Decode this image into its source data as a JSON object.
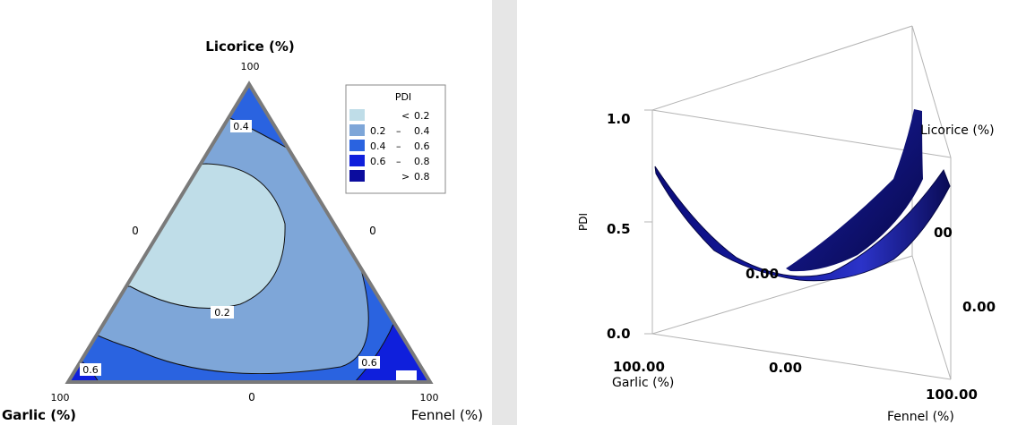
{
  "chart_data": [
    {
      "type": "ternary_contour",
      "response": "PDI",
      "axes": {
        "top": {
          "label": "Licorice (%)",
          "max_tick": "100"
        },
        "left": {
          "label": "Garlic (%)",
          "max_tick": "100"
        },
        "right": {
          "label": "Fennel (%)",
          "max_tick": "100"
        }
      },
      "side_ticks": {
        "left_edge": "0",
        "right_edge": "0",
        "bottom_edge": "0"
      },
      "legend": {
        "title": "PDI",
        "placement": "top-right",
        "entries": [
          {
            "op": "<",
            "low": "",
            "high": "0.2",
            "color": "#bfdde8"
          },
          {
            "op": "",
            "low": "0.2",
            "high": "0.4",
            "color": "#7ea6d8"
          },
          {
            "op": "",
            "low": "0.4",
            "high": "0.6",
            "color": "#2a63e0"
          },
          {
            "op": "",
            "low": "0.6",
            "high": "0.8",
            "color": "#0f1fdc"
          },
          {
            "op": ">",
            "low": "",
            "high": "0.8",
            "color": "#0b0c9e"
          }
        ]
      },
      "contour_labels": [
        "0.4",
        "0.2",
        "0.6",
        "0.6"
      ]
    },
    {
      "type": "surface3d",
      "response": "PDI",
      "zlabel": "PDI",
      "zticks": [
        "1.0",
        "0.5",
        "0.0"
      ],
      "axis_labels": {
        "garlic": "Garlic (%)",
        "fennel": "Fennel (%)",
        "licorice": "Licorice (%)"
      },
      "base_ticks": [
        "100.00",
        "0.00",
        "100.00",
        "0.00",
        "0.00",
        "00"
      ],
      "surface_color": "#0b0c7a"
    }
  ]
}
